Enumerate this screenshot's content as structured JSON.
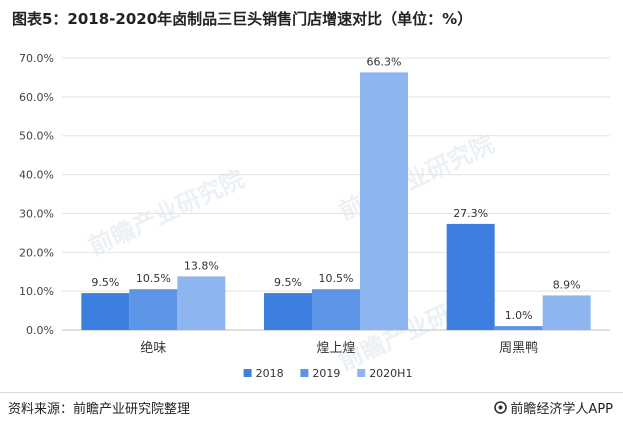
{
  "title": "图表5：2018-2020年卤制品三巨头销售门店增速对比（单位：%）",
  "source": "资料来源：前瞻产业研究院整理",
  "brand": "前瞻经济学人APP",
  "watermark": "前瞻产业研究院",
  "colors": {
    "series_2018": "#3d7fde",
    "series_2019": "#5d95e6",
    "series_2020H1": "#8db5ef",
    "grid": "#e3e3e3",
    "axis_text": "#444444"
  },
  "chart_data": {
    "type": "bar",
    "title": "",
    "xlabel": "",
    "ylabel": "",
    "categories": [
      "绝味",
      "煌上煌",
      "周黑鸭"
    ],
    "series": [
      {
        "name": "2018",
        "values": [
          9.5,
          9.5,
          27.3
        ]
      },
      {
        "name": "2019",
        "values": [
          10.5,
          10.5,
          1.0
        ]
      },
      {
        "name": "2020H1",
        "values": [
          13.8,
          66.3,
          8.9
        ]
      }
    ],
    "ylim": [
      0,
      70
    ],
    "yticks": [
      "0.0%",
      "10.0%",
      "20.0%",
      "30.0%",
      "40.0%",
      "50.0%",
      "60.0%",
      "70.0%"
    ],
    "value_suffix": "%",
    "grid": true,
    "legend_position": "bottom-center"
  }
}
